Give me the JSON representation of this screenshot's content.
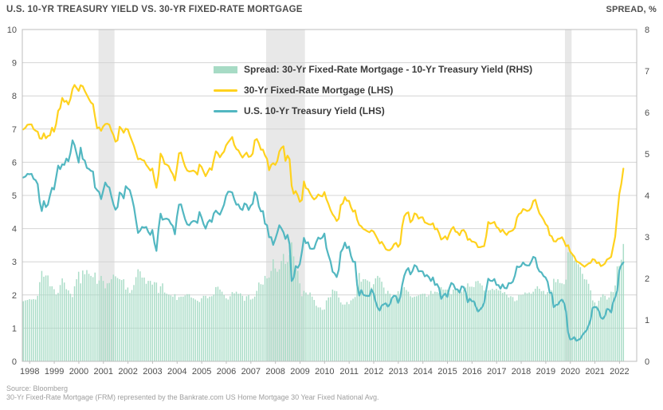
{
  "header": {
    "title": "U.S. 10-YR TREASURY YIELD VS. 30-YR FIXED-RATE MORTGAGE",
    "right_axis_title": "SPREAD, %"
  },
  "footer": {
    "source": "Source: Bloomberg",
    "note": "30-Yr Fixed-Rate Mortgage (FRM) represented by the Bankrate.com US Home Mortgage 30 Year Fixed National Avg."
  },
  "legend": [
    {
      "label": "Spread: 30-Yr Fixed-Rate Mortgage - 10-Yr Treasury Yield (RHS)",
      "swatch": "bar",
      "color": "#a7dbc5"
    },
    {
      "label": "30-Yr Fixed-Rate Mortgage (LHS)",
      "swatch": "line",
      "color": "#ffd21e"
    },
    {
      "label": "U.S. 10-Yr Treasury Yield (LHS)",
      "swatch": "line",
      "color": "#52b7c1"
    }
  ],
  "chart_data": {
    "type": "line+bar",
    "title": "U.S. 10-YR TREASURY YIELD VS. 30-YR FIXED-RATE MORTGAGE",
    "x_domain": [
      1998,
      2023
    ],
    "x_start_year": 1998,
    "points_per_year": 12,
    "x_tick_labels": [
      "1998",
      "1999",
      "2000",
      "2001",
      "2002",
      "2003",
      "2004",
      "2005",
      "2006",
      "2007",
      "2008",
      "2009",
      "2010",
      "2011",
      "2012",
      "2013",
      "2014",
      "2015",
      "2016",
      "2017",
      "2018",
      "2019",
      "2020",
      "2021",
      "2022"
    ],
    "left_axis": {
      "range": [
        0,
        10
      ],
      "tick_labels": [
        "0",
        "1",
        "2",
        "3",
        "4",
        "5",
        "6",
        "7",
        "8",
        "9",
        "10"
      ]
    },
    "right_axis": {
      "range": [
        0,
        8
      ],
      "tick_labels": [
        "0",
        "1",
        "2",
        "3",
        "4",
        "5",
        "6",
        "7",
        "8"
      ]
    },
    "grid": "horizontal",
    "recession_bands": [
      [
        2001.1,
        2001.75
      ],
      [
        2007.92,
        2009.5
      ],
      [
        2020.08,
        2020.35
      ]
    ],
    "band_color": "#e8e8e8",
    "series": [
      {
        "name": "Spread: 30-Yr Fixed-Rate Mortgage - 10-Yr Treasury Yield (RHS)",
        "type": "bar",
        "axis": "right",
        "color": "#a7dbc5",
        "derived": "mortgage_minus_treasury"
      },
      {
        "name": "30-Yr Fixed-Rate Mortgage (LHS)",
        "type": "line",
        "axis": "left",
        "color": "#ffd21e",
        "values": [
          6.99,
          7.04,
          7.13,
          7.14,
          7.14,
          7.0,
          6.95,
          6.92,
          6.72,
          6.71,
          6.87,
          6.72,
          6.79,
          6.81,
          7.04,
          6.92,
          7.15,
          7.55,
          7.63,
          7.94,
          7.82,
          7.85,
          7.74,
          7.91,
          8.21,
          8.33,
          8.24,
          8.15,
          8.32,
          8.29,
          8.15,
          8.03,
          7.91,
          7.8,
          7.75,
          7.38,
          7.03,
          7.05,
          6.95,
          7.08,
          7.15,
          7.16,
          7.13,
          6.95,
          6.82,
          6.62,
          6.66,
          7.07,
          7.0,
          6.89,
          7.01,
          6.99,
          6.81,
          6.65,
          6.49,
          6.29,
          6.09,
          6.11,
          6.07,
          6.05,
          5.92,
          5.84,
          5.75,
          5.81,
          5.48,
          5.23,
          5.63,
          6.26,
          6.15,
          5.95,
          5.93,
          5.88,
          5.74,
          5.64,
          5.45,
          5.83,
          6.27,
          6.29,
          6.06,
          5.87,
          5.75,
          5.72,
          5.73,
          5.75,
          5.71,
          5.63,
          5.93,
          5.86,
          5.72,
          5.58,
          5.7,
          5.82,
          5.77,
          6.07,
          6.33,
          6.27,
          6.15,
          6.25,
          6.32,
          6.51,
          6.6,
          6.68,
          6.76,
          6.52,
          6.4,
          6.36,
          6.24,
          6.14,
          6.22,
          6.29,
          6.16,
          6.18,
          6.26,
          6.66,
          6.7,
          6.57,
          6.38,
          6.38,
          6.21,
          6.1,
          5.76,
          5.92,
          5.97,
          5.92,
          6.04,
          6.32,
          6.43,
          6.48,
          6.04,
          6.2,
          6.09,
          5.29,
          5.05,
          5.13,
          5.0,
          4.81,
          4.86,
          5.42,
          5.22,
          5.19,
          5.06,
          4.95,
          4.88,
          4.93,
          5.03,
          4.99,
          4.97,
          5.1,
          4.89,
          4.74,
          4.56,
          4.43,
          4.35,
          4.23,
          4.3,
          4.71,
          4.76,
          4.95,
          4.84,
          4.84,
          4.64,
          4.51,
          4.55,
          4.27,
          4.11,
          4.07,
          3.99,
          3.96,
          3.92,
          3.89,
          3.95,
          3.91,
          3.8,
          3.68,
          3.55,
          3.6,
          3.5,
          3.38,
          3.35,
          3.35,
          3.41,
          3.53,
          3.57,
          3.45,
          3.54,
          4.07,
          4.37,
          4.46,
          4.49,
          4.19,
          4.26,
          4.46,
          4.43,
          4.3,
          4.34,
          4.34,
          4.19,
          4.16,
          4.13,
          4.12,
          4.16,
          3.98,
          4.0,
          3.86,
          3.67,
          3.71,
          3.77,
          3.67,
          3.84,
          3.98,
          4.05,
          3.91,
          3.89,
          3.8,
          3.94,
          3.96,
          3.87,
          3.66,
          3.69,
          3.61,
          3.6,
          3.57,
          3.44,
          3.44,
          3.46,
          3.47,
          3.77,
          4.2,
          4.15,
          4.17,
          4.2,
          4.05,
          4.01,
          3.9,
          3.97,
          3.88,
          3.81,
          3.9,
          3.92,
          3.95,
          4.03,
          4.33,
          4.44,
          4.47,
          4.59,
          4.57,
          4.53,
          4.55,
          4.63,
          4.83,
          4.87,
          4.64,
          4.46,
          4.37,
          4.27,
          4.14,
          4.07,
          3.8,
          3.77,
          3.62,
          3.61,
          3.69,
          3.7,
          3.74,
          3.62,
          3.47,
          3.5,
          3.31,
          3.23,
          3.16,
          3.02,
          2.99,
          2.95,
          2.9,
          2.85,
          2.9,
          2.95,
          2.97,
          3.08,
          3.06,
          2.96,
          2.98,
          2.87,
          2.9,
          2.95,
          3.07,
          3.1,
          3.15,
          3.45,
          3.76,
          4.42,
          5.05,
          5.35,
          5.81
        ]
      },
      {
        "name": "U.S. 10-Yr Treasury Yield (LHS)",
        "type": "line",
        "axis": "left",
        "color": "#52b7c1",
        "values": [
          5.54,
          5.57,
          5.65,
          5.64,
          5.65,
          5.5,
          5.46,
          5.34,
          4.81,
          4.53,
          4.83,
          4.65,
          4.72,
          5.0,
          5.23,
          5.18,
          5.54,
          5.9,
          5.79,
          5.94,
          5.92,
          6.11,
          6.03,
          6.28,
          6.66,
          6.52,
          6.26,
          5.99,
          6.44,
          6.1,
          6.05,
          5.83,
          5.8,
          5.74,
          5.72,
          5.24,
          5.16,
          5.1,
          4.89,
          5.14,
          5.39,
          5.28,
          5.24,
          4.97,
          4.73,
          4.57,
          4.65,
          5.09,
          5.04,
          4.91,
          5.28,
          5.21,
          5.16,
          4.93,
          4.65,
          4.26,
          3.87,
          3.94,
          4.05,
          4.03,
          4.05,
          3.9,
          3.81,
          3.96,
          3.57,
          3.33,
          3.98,
          4.45,
          4.27,
          4.29,
          4.3,
          4.27,
          4.15,
          4.08,
          3.83,
          4.35,
          4.72,
          4.73,
          4.5,
          4.28,
          4.13,
          4.1,
          4.19,
          4.23,
          4.22,
          4.17,
          4.5,
          4.34,
          4.14,
          4.0,
          4.18,
          4.26,
          4.2,
          4.46,
          4.54,
          4.47,
          4.42,
          4.57,
          4.72,
          4.99,
          5.11,
          5.11,
          5.09,
          4.88,
          4.72,
          4.73,
          4.6,
          4.56,
          4.76,
          4.72,
          4.56,
          4.69,
          4.75,
          5.1,
          5.0,
          4.67,
          4.52,
          4.53,
          4.15,
          4.1,
          3.74,
          3.74,
          3.51,
          3.68,
          3.88,
          4.1,
          4.01,
          3.89,
          3.69,
          3.81,
          3.53,
          2.42,
          2.52,
          2.87,
          2.82,
          2.93,
          3.29,
          3.72,
          3.56,
          3.59,
          3.4,
          3.39,
          3.4,
          3.59,
          3.73,
          3.69,
          3.73,
          3.85,
          3.42,
          3.2,
          3.01,
          2.7,
          2.65,
          2.54,
          2.76,
          3.29,
          3.39,
          3.58,
          3.41,
          3.46,
          3.17,
          3.0,
          3.0,
          2.3,
          1.98,
          2.15,
          2.01,
          1.98,
          1.97,
          1.97,
          2.17,
          2.05,
          1.8,
          1.62,
          1.53,
          1.68,
          1.72,
          1.75,
          1.65,
          1.72,
          1.91,
          1.98,
          1.96,
          1.76,
          1.93,
          2.3,
          2.58,
          2.74,
          2.81,
          2.62,
          2.72,
          2.9,
          2.86,
          2.71,
          2.72,
          2.71,
          2.56,
          2.6,
          2.54,
          2.42,
          2.53,
          2.3,
          2.33,
          2.21,
          1.88,
          1.98,
          2.04,
          1.94,
          2.2,
          2.36,
          2.32,
          2.17,
          2.17,
          2.07,
          2.26,
          2.24,
          2.09,
          1.78,
          1.89,
          1.81,
          1.81,
          1.64,
          1.5,
          1.56,
          1.63,
          1.76,
          2.14,
          2.49,
          2.43,
          2.42,
          2.48,
          2.3,
          2.3,
          2.19,
          2.32,
          2.21,
          2.2,
          2.36,
          2.35,
          2.4,
          2.58,
          2.86,
          2.84,
          2.87,
          2.98,
          2.91,
          2.89,
          2.89,
          3.0,
          3.15,
          3.12,
          2.83,
          2.71,
          2.68,
          2.57,
          2.53,
          2.4,
          2.07,
          2.06,
          1.63,
          1.7,
          1.71,
          1.81,
          1.86,
          1.76,
          1.5,
          0.87,
          0.66,
          0.67,
          0.73,
          0.62,
          0.65,
          0.68,
          0.79,
          0.87,
          0.93,
          1.08,
          1.26,
          1.61,
          1.64,
          1.62,
          1.52,
          1.32,
          1.28,
          1.37,
          1.58,
          1.56,
          1.47,
          1.78,
          1.93,
          2.13,
          2.75,
          2.9,
          2.98
        ]
      }
    ]
  }
}
